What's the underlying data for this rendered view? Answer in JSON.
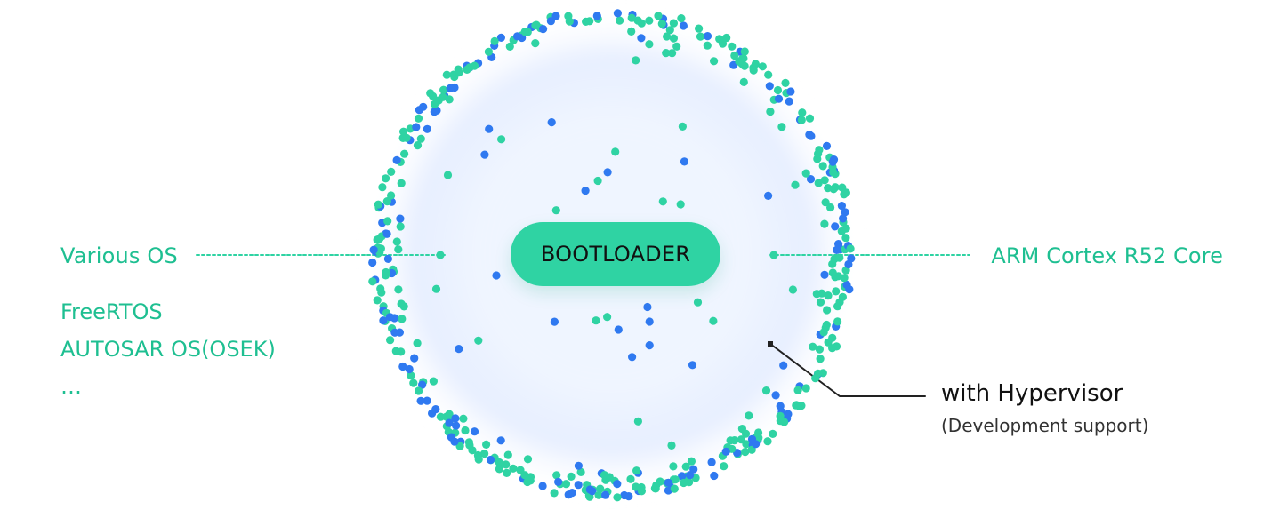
{
  "center_label": "BOOTLOADER",
  "left": {
    "title": "Various OS",
    "items": [
      "FreeRTOS",
      "AUTOSAR OS(OSEK)",
      "…"
    ]
  },
  "right": {
    "title": "ARM Cortex R52 Core"
  },
  "annotation": {
    "title": "with Hypervisor",
    "subtitle": "(Development support)"
  },
  "colors": {
    "accent_green": "#2fd3a3",
    "dot_green": "#2fd3a3",
    "dot_blue": "#2f79f0",
    "text_green": "#1ebf91",
    "dark": "#111111"
  }
}
